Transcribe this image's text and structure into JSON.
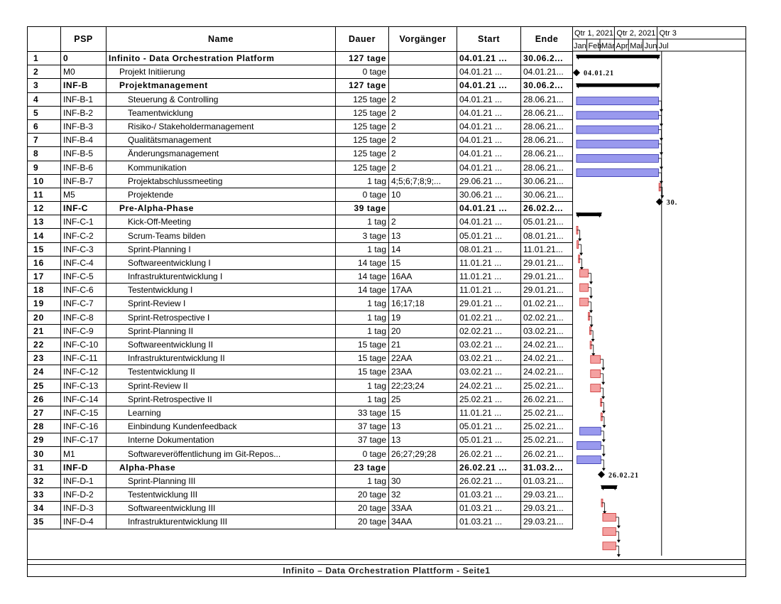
{
  "headers": {
    "id": "",
    "psp": "PSP",
    "name": "Name",
    "dauer": "Dauer",
    "vorgaenger": "Vorgänger",
    "start": "Start",
    "ende": "Ende"
  },
  "timescale": {
    "quarters": [
      "Qtr 1, 2021",
      "Qtr 2, 2021",
      "Qtr 3"
    ],
    "months": [
      "Jan",
      "Feb",
      "Mär",
      "Apr",
      "Mai",
      "Jun",
      "Jul"
    ]
  },
  "colors": {
    "summary": "#000000",
    "task_blue": "#9999ee",
    "task_blue_border": "#3333aa",
    "task_red": "#f4a0a0",
    "task_red_border": "#cc3333"
  },
  "tasks": [
    {
      "id": "1",
      "psp": "0",
      "name": "Infinito - Data Orchestration Platform",
      "dauer": "127 tage",
      "vorg": "",
      "start": "04.01.21 ...",
      "ende": "30.06.2...",
      "type": "summary",
      "level": 0,
      "s": "2021-01-04",
      "e": "2021-06-30"
    },
    {
      "id": "2",
      "psp": "M0",
      "name": "Projekt Initiierung",
      "dauer": "0 tage",
      "vorg": "",
      "start": "04.01.21 ...",
      "ende": "04.01.21...",
      "type": "milestone",
      "level": 1,
      "s": "2021-01-04",
      "e": "2021-01-04",
      "label": "04.01.21"
    },
    {
      "id": "3",
      "psp": "INF-B",
      "name": "Projektmanagement",
      "dauer": "127 tage",
      "vorg": "",
      "start": "04.01.21 ...",
      "ende": "30.06.2...",
      "type": "summary",
      "level": 1,
      "s": "2021-01-04",
      "e": "2021-06-30"
    },
    {
      "id": "4",
      "psp": "INF-B-1",
      "name": "Steuerung & Controlling",
      "dauer": "125 tage",
      "vorg": "2",
      "start": "04.01.21 ...",
      "ende": "28.06.21...",
      "type": "blue",
      "level": 2,
      "s": "2021-01-04",
      "e": "2021-06-28"
    },
    {
      "id": "5",
      "psp": "INF-B-2",
      "name": "Teamentwicklung",
      "dauer": "125 tage",
      "vorg": "2",
      "start": "04.01.21 ...",
      "ende": "28.06.21...",
      "type": "blue",
      "level": 2,
      "s": "2021-01-04",
      "e": "2021-06-28"
    },
    {
      "id": "6",
      "psp": "INF-B-3",
      "name": "Risiko-/ Stakeholdermanagement",
      "dauer": "125 tage",
      "vorg": "2",
      "start": "04.01.21 ...",
      "ende": "28.06.21...",
      "type": "blue",
      "level": 2,
      "s": "2021-01-04",
      "e": "2021-06-28"
    },
    {
      "id": "7",
      "psp": "INF-B-4",
      "name": "Qualitätsmanagement",
      "dauer": "125 tage",
      "vorg": "2",
      "start": "04.01.21 ...",
      "ende": "28.06.21...",
      "type": "blue",
      "level": 2,
      "s": "2021-01-04",
      "e": "2021-06-28"
    },
    {
      "id": "8",
      "psp": "INF-B-5",
      "name": "Änderungsmanagement",
      "dauer": "125 tage",
      "vorg": "2",
      "start": "04.01.21 ...",
      "ende": "28.06.21...",
      "type": "blue",
      "level": 2,
      "s": "2021-01-04",
      "e": "2021-06-28"
    },
    {
      "id": "9",
      "psp": "INF-B-6",
      "name": "Kommunikation",
      "dauer": "125 tage",
      "vorg": "2",
      "start": "04.01.21 ...",
      "ende": "28.06.21...",
      "type": "blue",
      "level": 2,
      "s": "2021-01-04",
      "e": "2021-06-28"
    },
    {
      "id": "10",
      "psp": "INF-B-7",
      "name": "Projektabschlussmeeting",
      "dauer": "1 tag",
      "vorg": "4;5;6;7;8;9;...",
      "start": "29.06.21 ...",
      "ende": "30.06.21...",
      "type": "red",
      "level": 2,
      "s": "2021-06-29",
      "e": "2021-06-30"
    },
    {
      "id": "11",
      "psp": "M5",
      "name": "Projektende",
      "dauer": "0 tage",
      "vorg": "10",
      "start": "30.06.21 ...",
      "ende": "30.06.21...",
      "type": "milestone",
      "level": 2,
      "s": "2021-06-30",
      "e": "2021-06-30",
      "label": "30."
    },
    {
      "id": "12",
      "psp": "INF-C",
      "name": "Pre-Alpha-Phase",
      "dauer": "39 tage",
      "vorg": "",
      "start": "04.01.21 ...",
      "ende": "26.02.2...",
      "type": "summary",
      "level": 1,
      "s": "2021-01-04",
      "e": "2021-02-26"
    },
    {
      "id": "13",
      "psp": "INF-C-1",
      "name": "Kick-Off-Meeting",
      "dauer": "1 tag",
      "vorg": "2",
      "start": "04.01.21 ...",
      "ende": "05.01.21...",
      "type": "red",
      "level": 2,
      "s": "2021-01-04",
      "e": "2021-01-05"
    },
    {
      "id": "14",
      "psp": "INF-C-2",
      "name": "Scrum-Teams bilden",
      "dauer": "3 tage",
      "vorg": "13",
      "start": "05.01.21 ...",
      "ende": "08.01.21...",
      "type": "red",
      "level": 2,
      "s": "2021-01-05",
      "e": "2021-01-08"
    },
    {
      "id": "15",
      "psp": "INF-C-3",
      "name": "Sprint-Planning I",
      "dauer": "1 tag",
      "vorg": "14",
      "start": "08.01.21 ...",
      "ende": "11.01.21...",
      "type": "red",
      "level": 2,
      "s": "2021-01-08",
      "e": "2021-01-09"
    },
    {
      "id": "16",
      "psp": "INF-C-4",
      "name": "Softwareentwicklung I",
      "dauer": "14 tage",
      "vorg": "15",
      "start": "11.01.21 ...",
      "ende": "29.01.21...",
      "type": "red",
      "level": 2,
      "s": "2021-01-11",
      "e": "2021-01-29"
    },
    {
      "id": "17",
      "psp": "INF-C-5",
      "name": "Infrastrukturentwicklung I",
      "dauer": "14 tage",
      "vorg": "16AA",
      "start": "11.01.21 ...",
      "ende": "29.01.21...",
      "type": "red",
      "level": 2,
      "s": "2021-01-11",
      "e": "2021-01-29"
    },
    {
      "id": "18",
      "psp": "INF-C-6",
      "name": "Testentwicklung I",
      "dauer": "14 tage",
      "vorg": "17AA",
      "start": "11.01.21 ...",
      "ende": "29.01.21...",
      "type": "red",
      "level": 2,
      "s": "2021-01-11",
      "e": "2021-01-29"
    },
    {
      "id": "19",
      "psp": "INF-C-7",
      "name": "Sprint-Review I",
      "dauer": "1 tag",
      "vorg": "16;17;18",
      "start": "29.01.21 ...",
      "ende": "01.02.21...",
      "type": "red",
      "level": 2,
      "s": "2021-01-29",
      "e": "2021-01-30"
    },
    {
      "id": "20",
      "psp": "INF-C-8",
      "name": "Sprint-Retrospective I",
      "dauer": "1 tag",
      "vorg": "19",
      "start": "01.02.21 ...",
      "ende": "02.02.21...",
      "type": "red",
      "level": 2,
      "s": "2021-02-01",
      "e": "2021-02-02"
    },
    {
      "id": "21",
      "psp": "INF-C-9",
      "name": "Sprint-Planning II",
      "dauer": "1 tag",
      "vorg": "20",
      "start": "02.02.21 ...",
      "ende": "03.02.21...",
      "type": "red",
      "level": 2,
      "s": "2021-02-02",
      "e": "2021-02-03"
    },
    {
      "id": "22",
      "psp": "INF-C-10",
      "name": "Softwareentwicklung II",
      "dauer": "15 tage",
      "vorg": "21",
      "start": "03.02.21 ...",
      "ende": "24.02.21...",
      "type": "red",
      "level": 2,
      "s": "2021-02-03",
      "e": "2021-02-24"
    },
    {
      "id": "23",
      "psp": "INF-C-11",
      "name": "Infrastrukturentwicklung II",
      "dauer": "15 tage",
      "vorg": "22AA",
      "start": "03.02.21 ...",
      "ende": "24.02.21...",
      "type": "red",
      "level": 2,
      "s": "2021-02-03",
      "e": "2021-02-24"
    },
    {
      "id": "24",
      "psp": "INF-C-12",
      "name": "Testentwicklung II",
      "dauer": "15 tage",
      "vorg": "23AA",
      "start": "03.02.21 ...",
      "ende": "24.02.21...",
      "type": "red",
      "level": 2,
      "s": "2021-02-03",
      "e": "2021-02-24"
    },
    {
      "id": "25",
      "psp": "INF-C-13",
      "name": "Sprint-Review II",
      "dauer": "1 tag",
      "vorg": "22;23;24",
      "start": "24.02.21 ...",
      "ende": "25.02.21...",
      "type": "red",
      "level": 2,
      "s": "2021-02-24",
      "e": "2021-02-25"
    },
    {
      "id": "26",
      "psp": "INF-C-14",
      "name": "Sprint-Retrospective II",
      "dauer": "1 tag",
      "vorg": "25",
      "start": "25.02.21 ...",
      "ende": "26.02.21...",
      "type": "red",
      "level": 2,
      "s": "2021-02-25",
      "e": "2021-02-26"
    },
    {
      "id": "27",
      "psp": "INF-C-15",
      "name": "Learning",
      "dauer": "33 tage",
      "vorg": "15",
      "start": "11.01.21 ...",
      "ende": "25.02.21...",
      "type": "blue",
      "level": 2,
      "s": "2021-01-11",
      "e": "2021-02-25"
    },
    {
      "id": "28",
      "psp": "INF-C-16",
      "name": "Einbindung Kundenfeedback",
      "dauer": "37 tage",
      "vorg": "13",
      "start": "05.01.21 ...",
      "ende": "25.02.21...",
      "type": "blue",
      "level": 2,
      "s": "2021-01-05",
      "e": "2021-02-25"
    },
    {
      "id": "29",
      "psp": "INF-C-17",
      "name": "Interne Dokumentation",
      "dauer": "37 tage",
      "vorg": "13",
      "start": "05.01.21 ...",
      "ende": "25.02.21...",
      "type": "blue",
      "level": 2,
      "s": "2021-01-05",
      "e": "2021-02-25"
    },
    {
      "id": "30",
      "psp": "M1",
      "name": "Softwareveröffentlichung im Git-Repos...",
      "dauer": "0 tage",
      "vorg": "26;27;29;28",
      "start": "26.02.21 ...",
      "ende": "26.02.21...",
      "type": "milestone",
      "level": 2,
      "s": "2021-02-26",
      "e": "2021-02-26",
      "label": "26.02.21"
    },
    {
      "id": "31",
      "psp": "INF-D",
      "name": "Alpha-Phase",
      "dauer": "23 tage",
      "vorg": "",
      "start": "26.02.21 ...",
      "ende": "31.03.2...",
      "type": "summary",
      "level": 1,
      "s": "2021-02-26",
      "e": "2021-03-31"
    },
    {
      "id": "32",
      "psp": "INF-D-1",
      "name": "Sprint-Planning III",
      "dauer": "1 tag",
      "vorg": "30",
      "start": "26.02.21 ...",
      "ende": "01.03.21...",
      "type": "red",
      "level": 2,
      "s": "2021-02-26",
      "e": "2021-02-27"
    },
    {
      "id": "33",
      "psp": "INF-D-2",
      "name": "Testentwicklung III",
      "dauer": "20 tage",
      "vorg": "32",
      "start": "01.03.21 ...",
      "ende": "29.03.21...",
      "type": "red",
      "level": 2,
      "s": "2021-03-01",
      "e": "2021-03-29"
    },
    {
      "id": "34",
      "psp": "INF-D-3",
      "name": "Softwareentwicklung III",
      "dauer": "20 tage",
      "vorg": "33AA",
      "start": "01.03.21 ...",
      "ende": "29.03.21...",
      "type": "red",
      "level": 2,
      "s": "2021-03-01",
      "e": "2021-03-29"
    },
    {
      "id": "35",
      "psp": "INF-D-4",
      "name": "Infrastrukturentwicklung III",
      "dauer": "20 tage",
      "vorg": "34AA",
      "start": "01.03.21 ...",
      "ende": "29.03.21...",
      "type": "red",
      "level": 2,
      "s": "2021-03-01",
      "e": "2021-03-29"
    }
  ],
  "footer": "Infinito – Data Orchestration Plattform  - Seite1"
}
